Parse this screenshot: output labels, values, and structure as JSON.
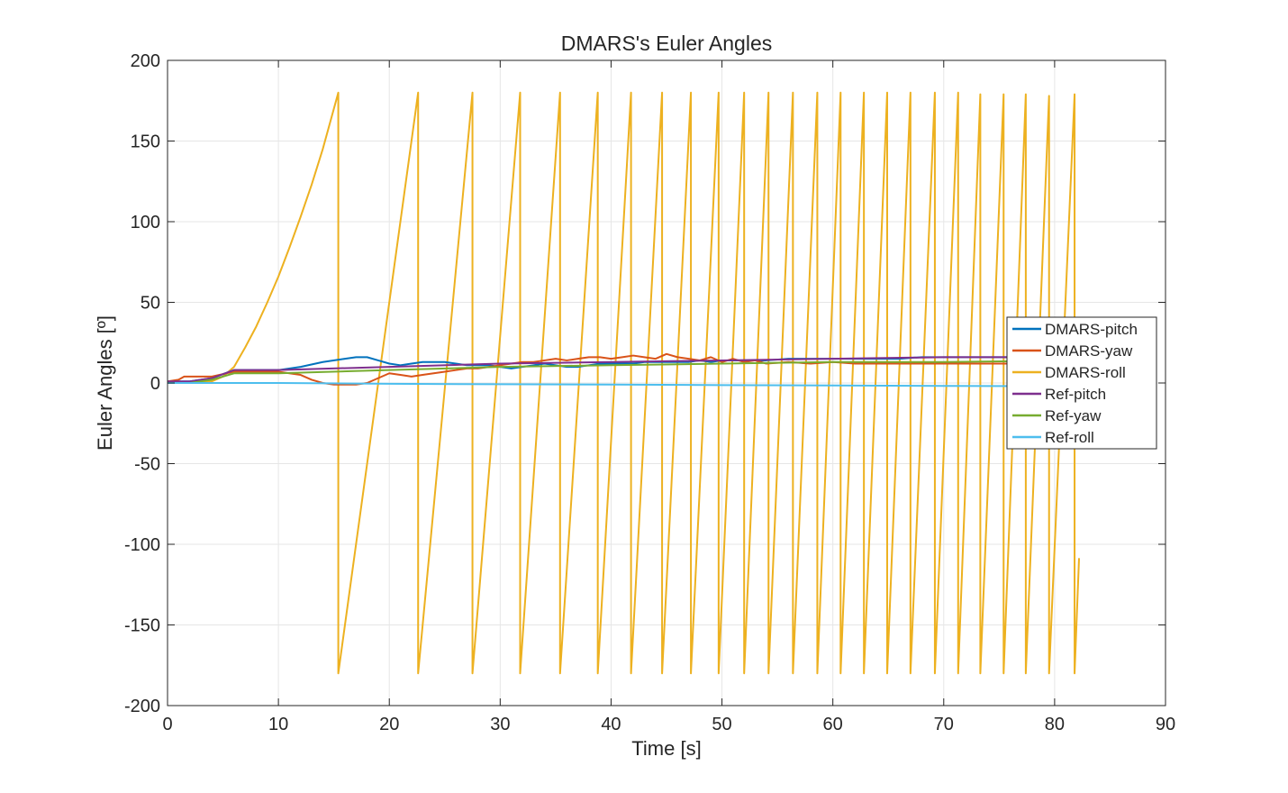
{
  "chart_data": {
    "type": "line",
    "title": "DMARS's Euler Angles",
    "xlabel": "Time [s]",
    "ylabel": "Euler Angles [º]",
    "xlim": [
      0,
      90
    ],
    "ylim": [
      -200,
      200
    ],
    "xticks": [
      0,
      10,
      20,
      30,
      40,
      50,
      60,
      70,
      80,
      90
    ],
    "yticks": [
      200,
      150,
      100,
      50,
      0,
      -50,
      -100,
      -150,
      -200
    ],
    "grid": true,
    "legend_position": "right",
    "series": [
      {
        "name": "DMARS-pitch",
        "color": "#0072BD",
        "x": [
          0,
          2,
          4,
          6,
          8,
          10,
          12,
          14,
          16,
          17,
          18,
          19,
          20,
          21,
          22,
          23,
          24,
          25,
          26,
          27,
          28,
          29,
          30,
          31,
          32,
          33,
          34,
          35,
          36,
          37,
          38,
          39,
          40,
          41,
          42,
          43,
          44,
          45,
          46,
          47,
          48,
          49,
          50,
          52,
          54,
          56,
          58,
          60,
          62,
          64,
          66,
          68,
          70,
          72,
          74,
          76,
          78,
          80,
          82
        ],
        "y": [
          1,
          1,
          3,
          8,
          8,
          8,
          10,
          13,
          15,
          16,
          16,
          14,
          12,
          11,
          12,
          13,
          13,
          13,
          12,
          11,
          11,
          11,
          10,
          9,
          10,
          11,
          12,
          11,
          10,
          10,
          11,
          12,
          12,
          12,
          12,
          13,
          13,
          13,
          13,
          13,
          14,
          13,
          14,
          14,
          14,
          15,
          15,
          15,
          15,
          15,
          15,
          16,
          16,
          16,
          16,
          16,
          16,
          16,
          16
        ]
      },
      {
        "name": "DMARS-yaw",
        "color": "#D95319",
        "x": [
          0,
          1,
          1.5,
          2,
          3,
          4,
          6,
          8,
          10,
          12,
          13,
          14,
          15,
          16,
          17,
          18,
          19,
          20,
          21,
          22,
          23,
          24,
          25,
          26,
          27,
          28,
          29,
          30,
          31,
          32,
          33,
          34,
          35,
          36,
          37,
          38,
          39,
          40,
          41,
          42,
          43,
          44,
          45,
          46,
          47,
          48,
          49,
          50,
          51,
          52,
          53,
          54,
          56,
          58,
          60,
          62,
          64,
          66,
          68,
          70,
          72,
          74,
          76,
          78,
          80,
          82
        ],
        "y": [
          1,
          2,
          4,
          4,
          4,
          4,
          7,
          7,
          7,
          5,
          2,
          0,
          -1,
          -1,
          -1,
          0,
          3,
          6,
          5,
          4,
          5,
          6,
          7,
          8,
          9,
          9,
          10,
          11,
          12,
          13,
          13,
          14,
          15,
          14,
          15,
          16,
          16,
          15,
          16,
          17,
          16,
          15,
          18,
          16,
          15,
          14,
          16,
          13,
          15,
          13,
          14,
          12,
          13,
          12,
          13,
          12,
          12,
          12,
          12,
          12,
          12,
          12,
          12,
          12,
          12,
          12
        ]
      },
      {
        "name": "DMARS-roll",
        "color": "#EDB120",
        "x": [
          0,
          2,
          4,
          5,
          6,
          7,
          8,
          9,
          10,
          11,
          12,
          13,
          14,
          15,
          15.4,
          15.4,
          22.6,
          22.6,
          27.5,
          27.5,
          31.8,
          31.8,
          35.4,
          35.4,
          38.8,
          38.8,
          41.8,
          41.8,
          44.6,
          44.6,
          47.2,
          47.2,
          49.7,
          49.7,
          52.0,
          52.0,
          54.2,
          54.2,
          56.4,
          56.4,
          58.6,
          58.6,
          60.7,
          60.7,
          62.8,
          62.8,
          64.9,
          64.9,
          67.0,
          67.0,
          69.2,
          69.2,
          71.3,
          71.3,
          73.3,
          73.3,
          75.4,
          75.4,
          77.4,
          77.4,
          79.5,
          79.5,
          81.8,
          81.8,
          82.2
        ],
        "y": [
          0,
          0,
          1,
          4,
          10,
          22,
          35,
          50,
          66,
          84,
          103,
          123,
          145,
          170,
          180,
          -180,
          180,
          -180,
          180,
          -180,
          180,
          -180,
          180,
          -180,
          180,
          -180,
          180,
          -180,
          180,
          -180,
          180,
          -180,
          180,
          -180,
          180,
          -180,
          180,
          -180,
          180,
          -180,
          180,
          -180,
          180,
          -180,
          180,
          -180,
          180,
          -180,
          180,
          -180,
          180,
          -180,
          180,
          -180,
          179,
          -180,
          179,
          -180,
          179,
          -180,
          178,
          -180,
          179,
          -180,
          -109
        ]
      },
      {
        "name": "Ref-pitch",
        "color": "#7E2F8E",
        "x": [
          0,
          2,
          4,
          6,
          8,
          10,
          20,
          30,
          40,
          50,
          60,
          70,
          82
        ],
        "y": [
          1,
          1,
          3,
          8,
          8,
          8,
          10,
          12,
          13,
          14,
          15,
          16,
          16
        ]
      },
      {
        "name": "Ref-yaw",
        "color": "#77AC30",
        "x": [
          0,
          2,
          4,
          6,
          8,
          10,
          20,
          30,
          40,
          50,
          60,
          70,
          82
        ],
        "y": [
          0,
          0,
          2,
          6,
          6,
          6,
          8,
          10,
          11,
          12,
          13,
          13,
          14
        ]
      },
      {
        "name": "Ref-roll",
        "color": "#4DBEEE",
        "x": [
          0,
          10,
          20,
          30,
          40,
          50,
          60,
          70,
          82
        ],
        "y": [
          0,
          0,
          -0.5,
          -0.8,
          -1,
          -1.3,
          -1.5,
          -1.8,
          -2
        ]
      }
    ]
  }
}
